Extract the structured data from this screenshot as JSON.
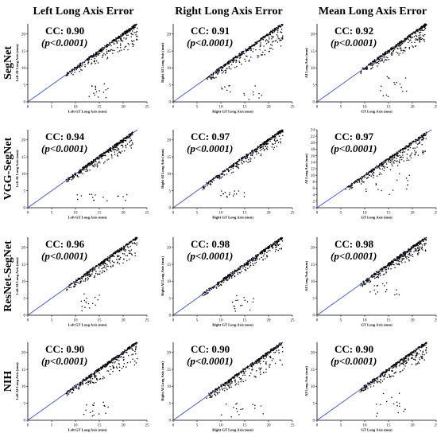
{
  "column_titles": [
    "Left Long Axis Error",
    "Right Long Axis Error",
    "Mean Long Axis Error"
  ],
  "row_labels": [
    "SegNet",
    "VGG-SegNet",
    "ResNet-SegNet",
    "NIH"
  ],
  "p_text": "(p<0.0001)",
  "colors": {
    "identity_line": "#3b4fc4",
    "points": "#000000",
    "axes": "#000000"
  },
  "chart_data": [
    {
      "type": "scatter",
      "row": "SegNet",
      "column": "Left Long Axis Error",
      "cc": "CC: 0.90",
      "xlabel": "Left GT Long Axis (mm)",
      "ylabel": "Left AI Long Axis (mm)",
      "xlim": [
        0,
        25
      ],
      "ylim": [
        0,
        23
      ],
      "xticks": [
        0,
        5,
        10,
        15,
        20,
        25
      ],
      "yticks": [
        0,
        5,
        10,
        15,
        20
      ],
      "identity_line": true,
      "x_range": [
        8,
        23
      ],
      "below_spread": 0.35,
      "outliers": [
        {
          "x": [
            12,
            17
          ],
          "y": [
            1,
            6
          ]
        }
      ]
    },
    {
      "type": "scatter",
      "row": "SegNet",
      "column": "Right Long Axis Error",
      "cc": "CC: 0.91",
      "xlabel": "Right GT Long Axis (mm)",
      "ylabel": "Right AI Long Axis (mm)",
      "xlim": [
        0,
        25
      ],
      "ylim": [
        0,
        23
      ],
      "xticks": [
        0,
        5,
        10,
        15,
        20,
        25
      ],
      "yticks": [
        0,
        5,
        10,
        15,
        20
      ],
      "identity_line": true,
      "x_range": [
        7,
        23
      ],
      "below_spread": 0.35,
      "outliers": [
        {
          "x": [
            10,
            19
          ],
          "y": [
            0.5,
            5
          ]
        }
      ]
    },
    {
      "type": "scatter",
      "row": "SegNet",
      "column": "Mean Long Axis Error",
      "cc": "CC: 0.92",
      "xlabel": "GT Long Axis (mm)",
      "ylabel": "AI Long Axis (mm)",
      "xlim": [
        0,
        25
      ],
      "ylim": [
        0,
        23
      ],
      "xticks": [
        0,
        5,
        10,
        15,
        20,
        25
      ],
      "yticks": [
        0,
        5,
        10,
        15,
        20
      ],
      "identity_line": true,
      "x_range": [
        9,
        23
      ],
      "below_spread": 0.3,
      "outliers": [
        {
          "x": [
            13,
            19
          ],
          "y": [
            1,
            8
          ]
        }
      ]
    },
    {
      "type": "scatter",
      "row": "VGG-SegNet",
      "column": "Left Long Axis Error",
      "cc": "CC: 0.94",
      "xlabel": "Left GT Long Axis (mm)",
      "ylabel": "Left AI Long Axis (mm)",
      "xlim": [
        0,
        25
      ],
      "ylim": [
        0,
        23
      ],
      "xticks": [
        0,
        5,
        10,
        15,
        20,
        25
      ],
      "yticks": [
        0,
        5,
        10,
        15,
        20
      ],
      "identity_line": true,
      "x_range": [
        8,
        22
      ],
      "below_spread": 0.25,
      "outliers": [
        {
          "x": [
            10,
            22
          ],
          "y": [
            2,
            4
          ]
        }
      ]
    },
    {
      "type": "scatter",
      "row": "VGG-SegNet",
      "column": "Right Long Axis Error",
      "cc": "CC: 0.97",
      "xlabel": "Right GT Long Axis (mm)",
      "ylabel": "Right AI Long Axis (mm)",
      "xlim": [
        0,
        25
      ],
      "ylim": [
        0,
        23
      ],
      "xticks": [
        0,
        5,
        10,
        15,
        20,
        25
      ],
      "yticks": [
        0,
        5,
        10,
        15,
        20
      ],
      "identity_line": true,
      "x_range": [
        6,
        23
      ],
      "below_spread": 0.2,
      "outliers": [
        {
          "x": [
            10,
            15
          ],
          "y": [
            3,
            5
          ]
        }
      ]
    },
    {
      "type": "scatter",
      "row": "VGG-SegNet",
      "column": "Mean Long Axis Error",
      "cc": "CC: 0.97",
      "xlabel": "GT Long Axis (mm)",
      "ylabel": "AI Long Axis (mm)",
      "xlim": [
        0,
        25
      ],
      "ylim": [
        0,
        24
      ],
      "xticks": [
        0,
        5,
        10,
        15,
        20,
        25
      ],
      "yticks": [
        0,
        2,
        4,
        6,
        8,
        10,
        12,
        14,
        16,
        18,
        20,
        22,
        24
      ],
      "identity_line": true,
      "x_range": [
        6,
        23
      ],
      "below_spread": 0.3,
      "outliers": [
        {
          "x": [
            10,
            20
          ],
          "y": [
            4,
            12
          ]
        }
      ]
    },
    {
      "type": "scatter",
      "row": "ResNet-SegNet",
      "column": "Left Long Axis Error",
      "cc": "CC: 0.96",
      "xlabel": "Left GT Long Axis (mm)",
      "ylabel": "Left AI Long Axis (mm)",
      "xlim": [
        0,
        25
      ],
      "ylim": [
        0,
        23
      ],
      "xticks": [
        0,
        5,
        10,
        15,
        20,
        25
      ],
      "yticks": [
        0,
        5,
        10,
        15,
        20
      ],
      "identity_line": true,
      "x_range": [
        8,
        23
      ],
      "below_spread": 0.3,
      "outliers": [
        {
          "x": [
            11,
            15
          ],
          "y": [
            1,
            7
          ]
        }
      ]
    },
    {
      "type": "scatter",
      "row": "ResNet-SegNet",
      "column": "Right Long Axis Error",
      "cc": "CC: 0.98",
      "xlabel": "Right GT Long Axis (mm)",
      "ylabel": "Right AI Long Axis (mm)",
      "xlim": [
        0,
        25
      ],
      "ylim": [
        0,
        23
      ],
      "xticks": [
        0,
        5,
        10,
        15,
        20,
        25
      ],
      "yticks": [
        0,
        5,
        10,
        15,
        20
      ],
      "identity_line": true,
      "x_range": [
        6,
        23
      ],
      "below_spread": 0.15,
      "outliers": [
        {
          "x": [
            12,
            17
          ],
          "y": [
            1,
            6
          ]
        }
      ]
    },
    {
      "type": "scatter",
      "row": "ResNet-SegNet",
      "column": "Mean Long Axis Error",
      "cc": "CC: 0.98",
      "xlabel": "GT Long Axis (mm)",
      "ylabel": "AI Long Axis (mm)",
      "xlim": [
        0,
        25
      ],
      "ylim": [
        0,
        23
      ],
      "xticks": [
        0,
        5,
        10,
        15,
        20,
        25
      ],
      "yticks": [
        0,
        5,
        10,
        15,
        20
      ],
      "identity_line": true,
      "x_range": [
        9,
        23
      ],
      "below_spread": 0.25,
      "outliers": [
        {
          "x": [
            11,
            18
          ],
          "y": [
            6,
            10
          ]
        }
      ]
    },
    {
      "type": "scatter",
      "row": "NIH",
      "column": "Left Long Axis Error",
      "cc": "CC: 0.90",
      "xlabel": "Left GT Long Axis (mm)",
      "ylabel": "Left AI Long Axis (mm)",
      "xlim": [
        0,
        25
      ],
      "ylim": [
        0,
        23
      ],
      "xticks": [
        0,
        5,
        10,
        15,
        20,
        25
      ],
      "yticks": [
        0,
        5,
        10,
        15,
        20
      ],
      "identity_line": true,
      "x_range": [
        8,
        23
      ],
      "below_spread": 0.35,
      "outliers": [
        {
          "x": [
            11,
            17
          ],
          "y": [
            1,
            6
          ]
        }
      ]
    },
    {
      "type": "scatter",
      "row": "NIH",
      "column": "Right Long Axis Error",
      "cc": "CC: 0.90",
      "xlabel": "Right GT Long Axis (mm)",
      "ylabel": "Right AI Long Axis (mm)",
      "xlim": [
        0,
        25
      ],
      "ylim": [
        0,
        23
      ],
      "xticks": [
        0,
        5,
        10,
        15,
        20,
        25
      ],
      "yticks": [
        0,
        5,
        10,
        15,
        20
      ],
      "identity_line": true,
      "x_range": [
        7,
        23
      ],
      "below_spread": 0.35,
      "outliers": [
        {
          "x": [
            10,
            19
          ],
          "y": [
            1,
            5
          ]
        }
      ]
    },
    {
      "type": "scatter",
      "row": "NIH",
      "column": "Mean Long Axis Error",
      "cc": "CC: 0.90",
      "xlabel": "GT Long Axis (mm)",
      "ylabel": "AI Long Axis (mm)",
      "xlim": [
        0,
        25
      ],
      "ylim": [
        0,
        23
      ],
      "xticks": [
        0,
        5,
        10,
        15,
        20,
        25
      ],
      "yticks": [
        0,
        5,
        10,
        15,
        20
      ],
      "identity_line": true,
      "x_range": [
        9,
        23
      ],
      "below_spread": 0.3,
      "outliers": [
        {
          "x": [
            12,
            19
          ],
          "y": [
            1,
            8
          ]
        }
      ]
    }
  ]
}
